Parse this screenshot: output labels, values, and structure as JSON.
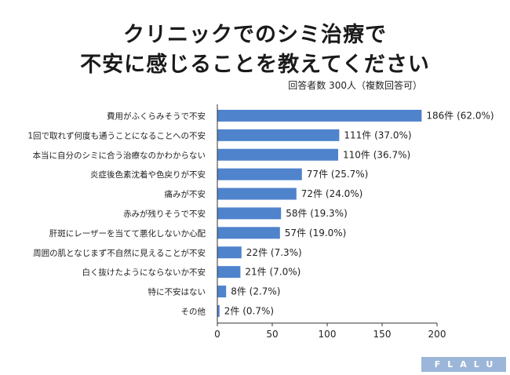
{
  "title": {
    "line1": "クリニックでのシミ治療で",
    "line2": "不安に感じることを教えてください"
  },
  "respondents_note": "回答者数 300人（複数回答可）",
  "brand_logo": "FLALU",
  "colors": {
    "bar": "#4f83cc",
    "axis": "#333333",
    "logo_bg": "#9bb6d8"
  },
  "chart_data": {
    "type": "bar",
    "orientation": "horizontal",
    "categories": [
      "費用がふくらみそうで不安",
      "1回で取れず何度も通うことになることへの不安",
      "本当に自分のシミに合う治療なのかわからない",
      "炎症後色素沈着や色戻りが不安",
      "痛みが不安",
      "赤みが残りそうで不安",
      "肝斑にレーザーを当てて悪化しないか心配",
      "周囲の肌となじまず不自然に見えることが不安",
      "白く抜けたようにならないか不安",
      "特に不安はない",
      "その他"
    ],
    "values": [
      186,
      111,
      110,
      77,
      72,
      58,
      57,
      22,
      21,
      8,
      2
    ],
    "value_labels": [
      "186件 (62.0%)",
      "111件 (37.0%)",
      "110件 (36.7%)",
      "77件 (25.7%)",
      "72件 (24.0%)",
      "58件 (19.3%)",
      "57件 (19.0%)",
      "22件 (7.3%)",
      "21件 (7.0%)",
      "8件 (2.7%)",
      "2件 (0.7%)"
    ],
    "xlim": [
      0,
      200
    ],
    "xticks": [
      0,
      50,
      100,
      150,
      200
    ],
    "grid": false
  }
}
